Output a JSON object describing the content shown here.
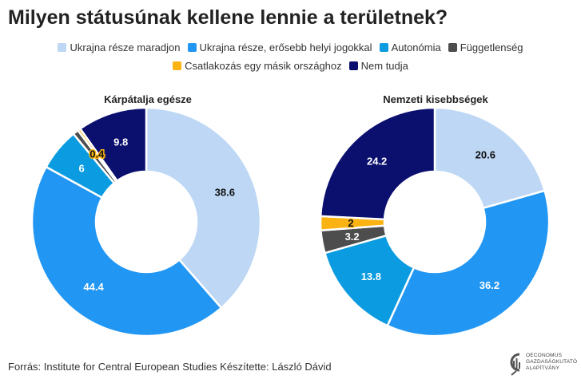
{
  "title": "Milyen státusúnak kellene lennie a területnek?",
  "legend": [
    {
      "label": "Ukrajna része maradjon",
      "color": "#bdd7f5"
    },
    {
      "label": "Ukrajna része, erősebb helyi jogokkal",
      "color": "#2196f3"
    },
    {
      "label": "Autonómia",
      "color": "#0a9be0"
    },
    {
      "label": "Függetlenség",
      "color": "#4d4d4d"
    },
    {
      "label": "Csatlakozás egy másik országhoz",
      "color": "#fbb314"
    },
    {
      "label": "Nem tudja",
      "color": "#0b0f6e"
    }
  ],
  "chart_data": [
    {
      "type": "pie",
      "title": "Kárpátalja egésze",
      "categories": [
        "Ukrajna része maradjon",
        "Ukrajna része, erősebb helyi jogokkal",
        "Autonómia",
        "Függetlenség",
        "Csatlakozás egy másik országhoz",
        "Nem tudja"
      ],
      "values": [
        38.6,
        44.4,
        6,
        0.8,
        0.4,
        9.8
      ],
      "labels": [
        "38.6",
        "44.4",
        "6",
        "",
        "0.4",
        "9.8"
      ]
    },
    {
      "type": "pie",
      "title": "Nemzeti kisebbségek",
      "categories": [
        "Ukrajna része maradjon",
        "Ukrajna része, erősebb helyi jogokkal",
        "Autonómia",
        "Függetlenség",
        "Csatlakozás egy másik országhoz",
        "Nem tudja"
      ],
      "values": [
        20.6,
        36.2,
        13.8,
        3.2,
        2,
        24.2
      ],
      "labels": [
        "20.6",
        "36.2",
        "13.8",
        "3.2",
        "2",
        "24.2"
      ]
    }
  ],
  "source": "Forrás: Institute for Central European Studies Készítette: László Dávid",
  "logo": {
    "line1": "OECONOMUS",
    "line2": "GAZDASÁGKUTATÓ",
    "line3": "ALAPÍTVÁNY"
  }
}
